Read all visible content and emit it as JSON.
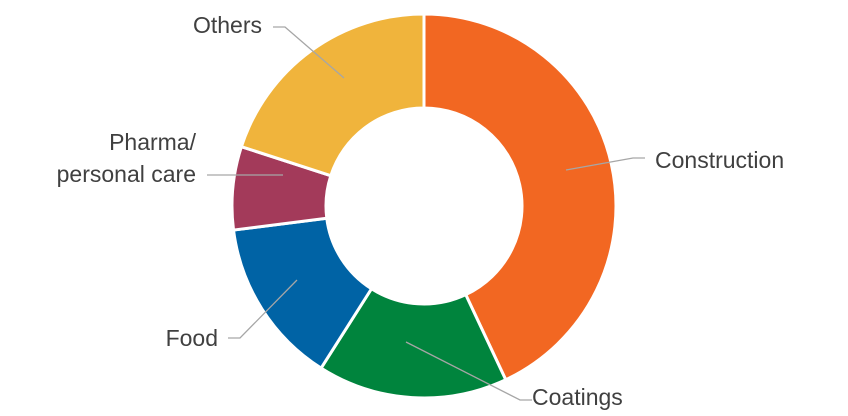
{
  "chart_data": {
    "type": "pie",
    "donut": true,
    "title": "",
    "start_angle_deg": 0,
    "direction": "clockwise",
    "slices": [
      {
        "name": "Construction",
        "value": 43,
        "color": "#f26722"
      },
      {
        "name": "Coatings",
        "value": 16,
        "color": "#00843d"
      },
      {
        "name": "Food",
        "value": 14,
        "color": "#0063a5"
      },
      {
        "name": "Pharma/ personal care",
        "value": 7,
        "color": "#a33a5a"
      },
      {
        "name": "Others",
        "value": 20,
        "color": "#f0b43c"
      }
    ],
    "labels": {
      "Construction": [
        "Construction"
      ],
      "Coatings": [
        "Coatings"
      ],
      "Food": [
        "Food"
      ],
      "Pharma/ personal care": [
        "Pharma/",
        "personal care"
      ],
      "Others": [
        "Others"
      ]
    }
  }
}
